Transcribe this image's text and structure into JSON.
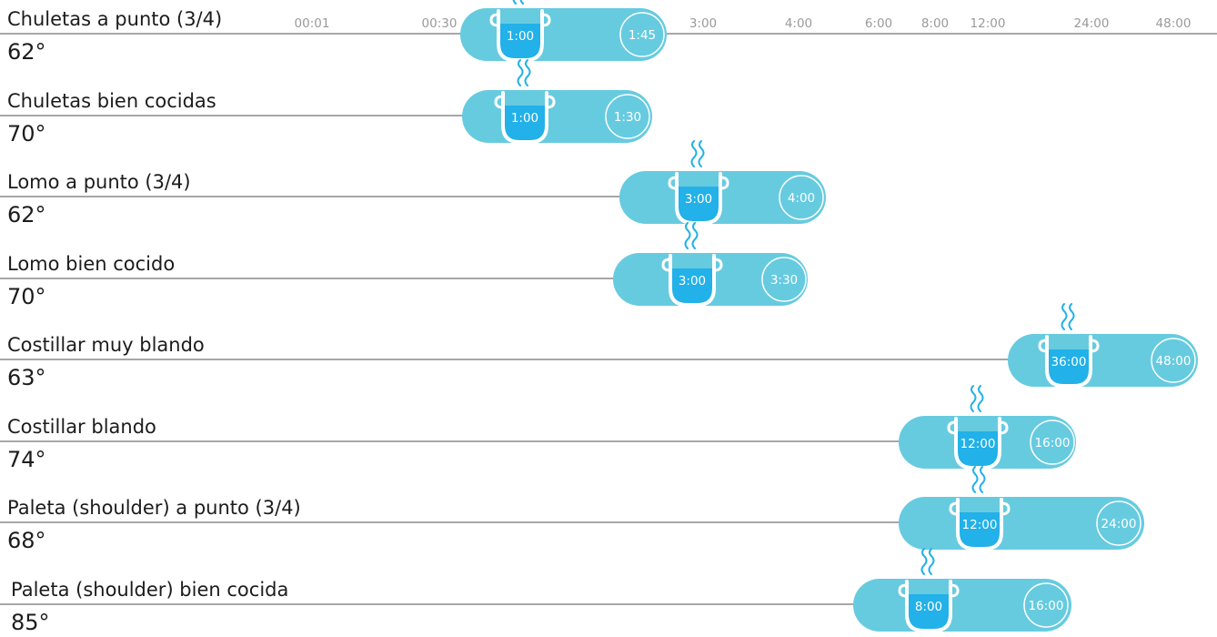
{
  "chart_data": {
    "type": "range_timeline",
    "x_unit": "hours",
    "x_scale": "log",
    "x_ticks": [
      {
        "label": "00:01",
        "hours": 0.0167
      },
      {
        "label": "00:30",
        "hours": 0.5
      },
      {
        "label": "3:00",
        "hours": 3
      },
      {
        "label": "4:00",
        "hours": 4
      },
      {
        "label": "6:00",
        "hours": 6
      },
      {
        "label": "8:00",
        "hours": 8
      },
      {
        "label": "12:00",
        "hours": 12
      },
      {
        "label": "24:00",
        "hours": 24
      },
      {
        "label": "48:00",
        "hours": 48
      }
    ],
    "rows": [
      {
        "name": "Chuletas a punto (3/4)",
        "temp": "62°",
        "start": "1:00",
        "end": "1:45"
      },
      {
        "name": "Chuletas bien cocidas",
        "temp": "70°",
        "start": "1:00",
        "end": "1:30"
      },
      {
        "name": "Lomo a punto (3/4)",
        "temp": "62°",
        "start": "3:00",
        "end": "4:00"
      },
      {
        "name": "Lomo bien cocido",
        "temp": "70°",
        "start": "3:00",
        "end": "3:30"
      },
      {
        "name": "Costillar muy blando",
        "temp": "63°",
        "start": "36:00",
        "end": "48:00"
      },
      {
        "name": "Costillar blando",
        "temp": "74°",
        "start": "12:00",
        "end": "16:00"
      },
      {
        "name": "Paleta (shoulder) a punto (3/4)",
        "temp": "68°",
        "start": "12:00",
        "end": "24:00"
      },
      {
        "name": "Paleta (shoulder) bien cocida",
        "temp": "85°",
        "start": "8:00",
        "end": "16:00"
      }
    ],
    "colors": {
      "bar": "#67cbe0",
      "water": "#22b1e8",
      "steam": "#22b1e8",
      "outline": "#ffffff",
      "line": "#8a8a8a"
    },
    "icon": "cooking-pot-icon"
  }
}
